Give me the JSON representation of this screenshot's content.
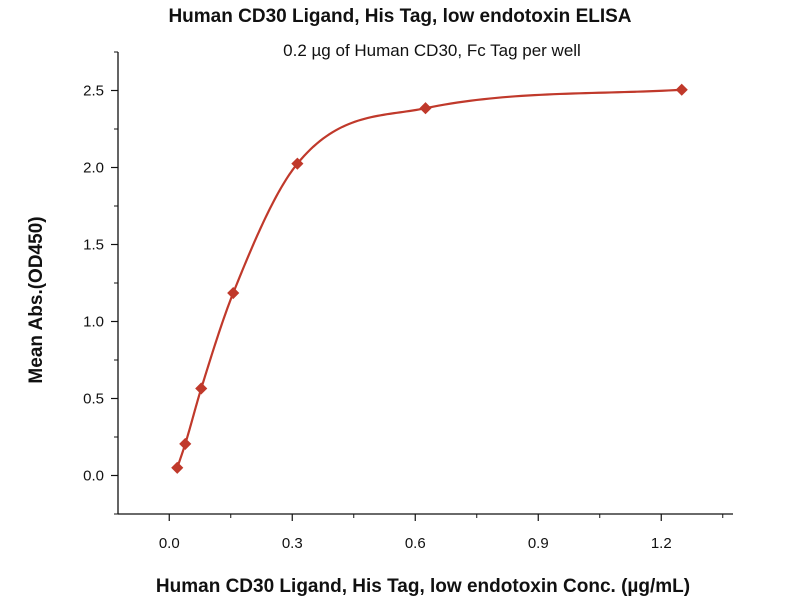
{
  "chart_data": {
    "type": "scatter",
    "title": "Human CD30 Ligand, His Tag, low endotoxin ELISA",
    "subtitle": "0.2 µg of Human CD30, Fc Tag per well",
    "xlabel": "Human CD30 Ligand, His Tag, low endotoxin Conc. (µg/mL)",
    "ylabel": "Mean Abs.(OD450)",
    "xlim": [
      -0.125,
      1.375
    ],
    "ylim": [
      -0.25,
      2.75
    ],
    "xticks": [
      0.0,
      0.3,
      0.6,
      0.9,
      1.2
    ],
    "xtick_labels": [
      "0.0",
      "0.3",
      "0.6",
      "0.9",
      "1.2"
    ],
    "yticks": [
      0.0,
      0.5,
      1.0,
      1.5,
      2.0,
      2.5
    ],
    "ytick_labels": [
      "0.0",
      "0.5",
      "1.0",
      "1.5",
      "2.0",
      "2.5"
    ],
    "grid": false,
    "marker": "diamond",
    "fit_curve": true,
    "color": "#c0392b",
    "series": [
      {
        "x": [
          0.0195,
          0.039,
          0.078,
          0.156,
          0.3125,
          0.625,
          1.25
        ],
        "y": [
          0.05,
          0.205,
          0.565,
          1.185,
          2.025,
          2.385,
          2.505
        ]
      }
    ]
  }
}
